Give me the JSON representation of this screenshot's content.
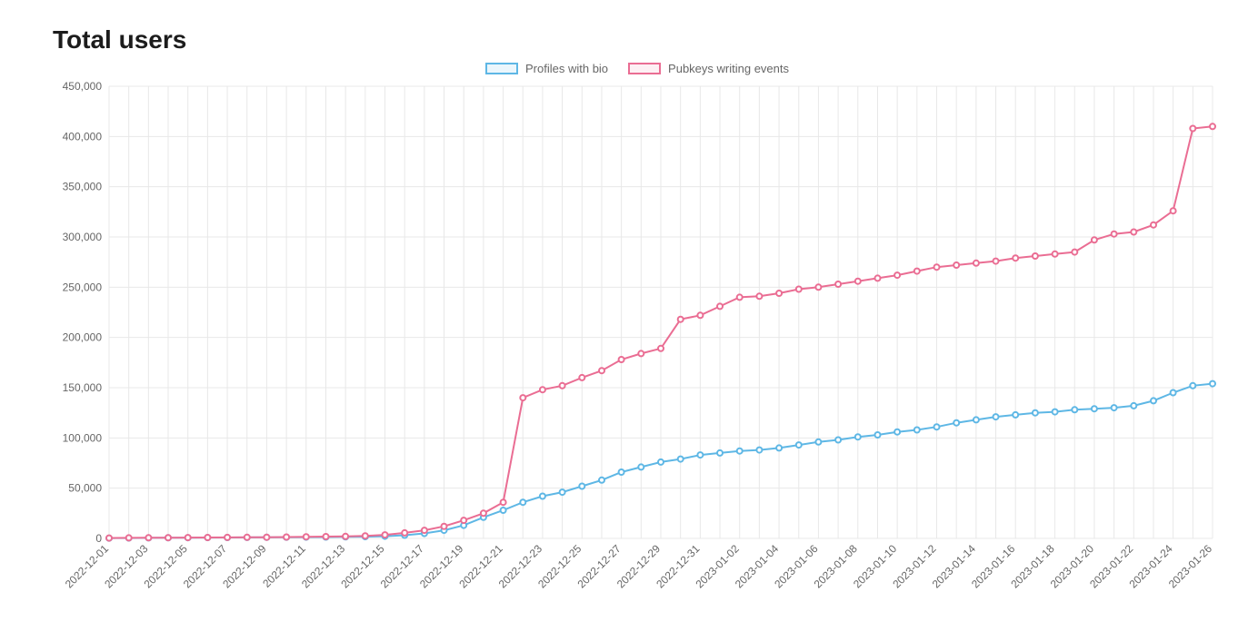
{
  "title": "Total users",
  "chart": {
    "type": "line",
    "background_color": "#ffffff",
    "grid_color": "#e8e8e8",
    "title_fontsize": 28,
    "label_fontsize": 12,
    "legend_position": "top-center",
    "x_label_rotation_deg": -45,
    "ylim": [
      0,
      450000
    ],
    "ytick_step": 50000,
    "y_ticks": [
      0,
      50000,
      100000,
      150000,
      200000,
      250000,
      300000,
      350000,
      400000,
      450000
    ],
    "x_categories": [
      "2022-12-01",
      "2022-12-02",
      "2022-12-03",
      "2022-12-04",
      "2022-12-05",
      "2022-12-06",
      "2022-12-07",
      "2022-12-08",
      "2022-12-09",
      "2022-12-10",
      "2022-12-11",
      "2022-12-12",
      "2022-12-13",
      "2022-12-14",
      "2022-12-15",
      "2022-12-16",
      "2022-12-17",
      "2022-12-18",
      "2022-12-19",
      "2022-12-20",
      "2022-12-21",
      "2022-12-22",
      "2022-12-23",
      "2022-12-24",
      "2022-12-25",
      "2022-12-26",
      "2022-12-27",
      "2022-12-28",
      "2022-12-29",
      "2022-12-30",
      "2022-12-31",
      "2023-01-01",
      "2023-01-02",
      "2023-01-03",
      "2023-01-04",
      "2023-01-05",
      "2023-01-06",
      "2023-01-07",
      "2023-01-08",
      "2023-01-09",
      "2023-01-10",
      "2023-01-11",
      "2023-01-12",
      "2023-01-13",
      "2023-01-14",
      "2023-01-15",
      "2023-01-16",
      "2023-01-17",
      "2023-01-18",
      "2023-01-19",
      "2023-01-20",
      "2023-01-21",
      "2023-01-22",
      "2023-01-23",
      "2023-01-24",
      "2023-01-25",
      "2023-01-26"
    ],
    "x_tick_every": 2,
    "point_radius": 3,
    "line_width": 2,
    "series": [
      {
        "name": "Profiles with bio",
        "color": "#5eb7e5",
        "fill_color": "rgba(94,183,229,0.12)",
        "values": [
          300,
          400,
          500,
          600,
          700,
          800,
          900,
          1000,
          1100,
          1200,
          1300,
          1400,
          1500,
          1700,
          2200,
          3200,
          5000,
          8000,
          13000,
          21000,
          28000,
          36000,
          42000,
          46000,
          52000,
          58000,
          66000,
          71000,
          76000,
          79000,
          83000,
          85000,
          87000,
          88000,
          90000,
          93000,
          96000,
          98000,
          101000,
          103000,
          106000,
          108000,
          111000,
          115000,
          118000,
          121000,
          123000,
          125000,
          126000,
          128000,
          129000,
          130000,
          132000,
          137000,
          145000,
          152000,
          154000
        ]
      },
      {
        "name": "Pubkeys writing events",
        "color": "#ea6d93",
        "fill_color": "rgba(234,109,147,0.10)",
        "values": [
          400,
          500,
          600,
          700,
          800,
          900,
          1000,
          1100,
          1200,
          1400,
          1600,
          1800,
          2000,
          2500,
          3500,
          5500,
          8000,
          12000,
          18000,
          25000,
          36000,
          140000,
          148000,
          152000,
          160000,
          167000,
          178000,
          184000,
          189000,
          218000,
          222000,
          231000,
          240000,
          241000,
          244000,
          248000,
          250000,
          253000,
          256000,
          259000,
          262000,
          266000,
          270000,
          272000,
          274000,
          276000,
          279000,
          281000,
          283000,
          285000,
          297000,
          303000,
          305000,
          312000,
          326000,
          408000,
          410000
        ]
      }
    ]
  }
}
